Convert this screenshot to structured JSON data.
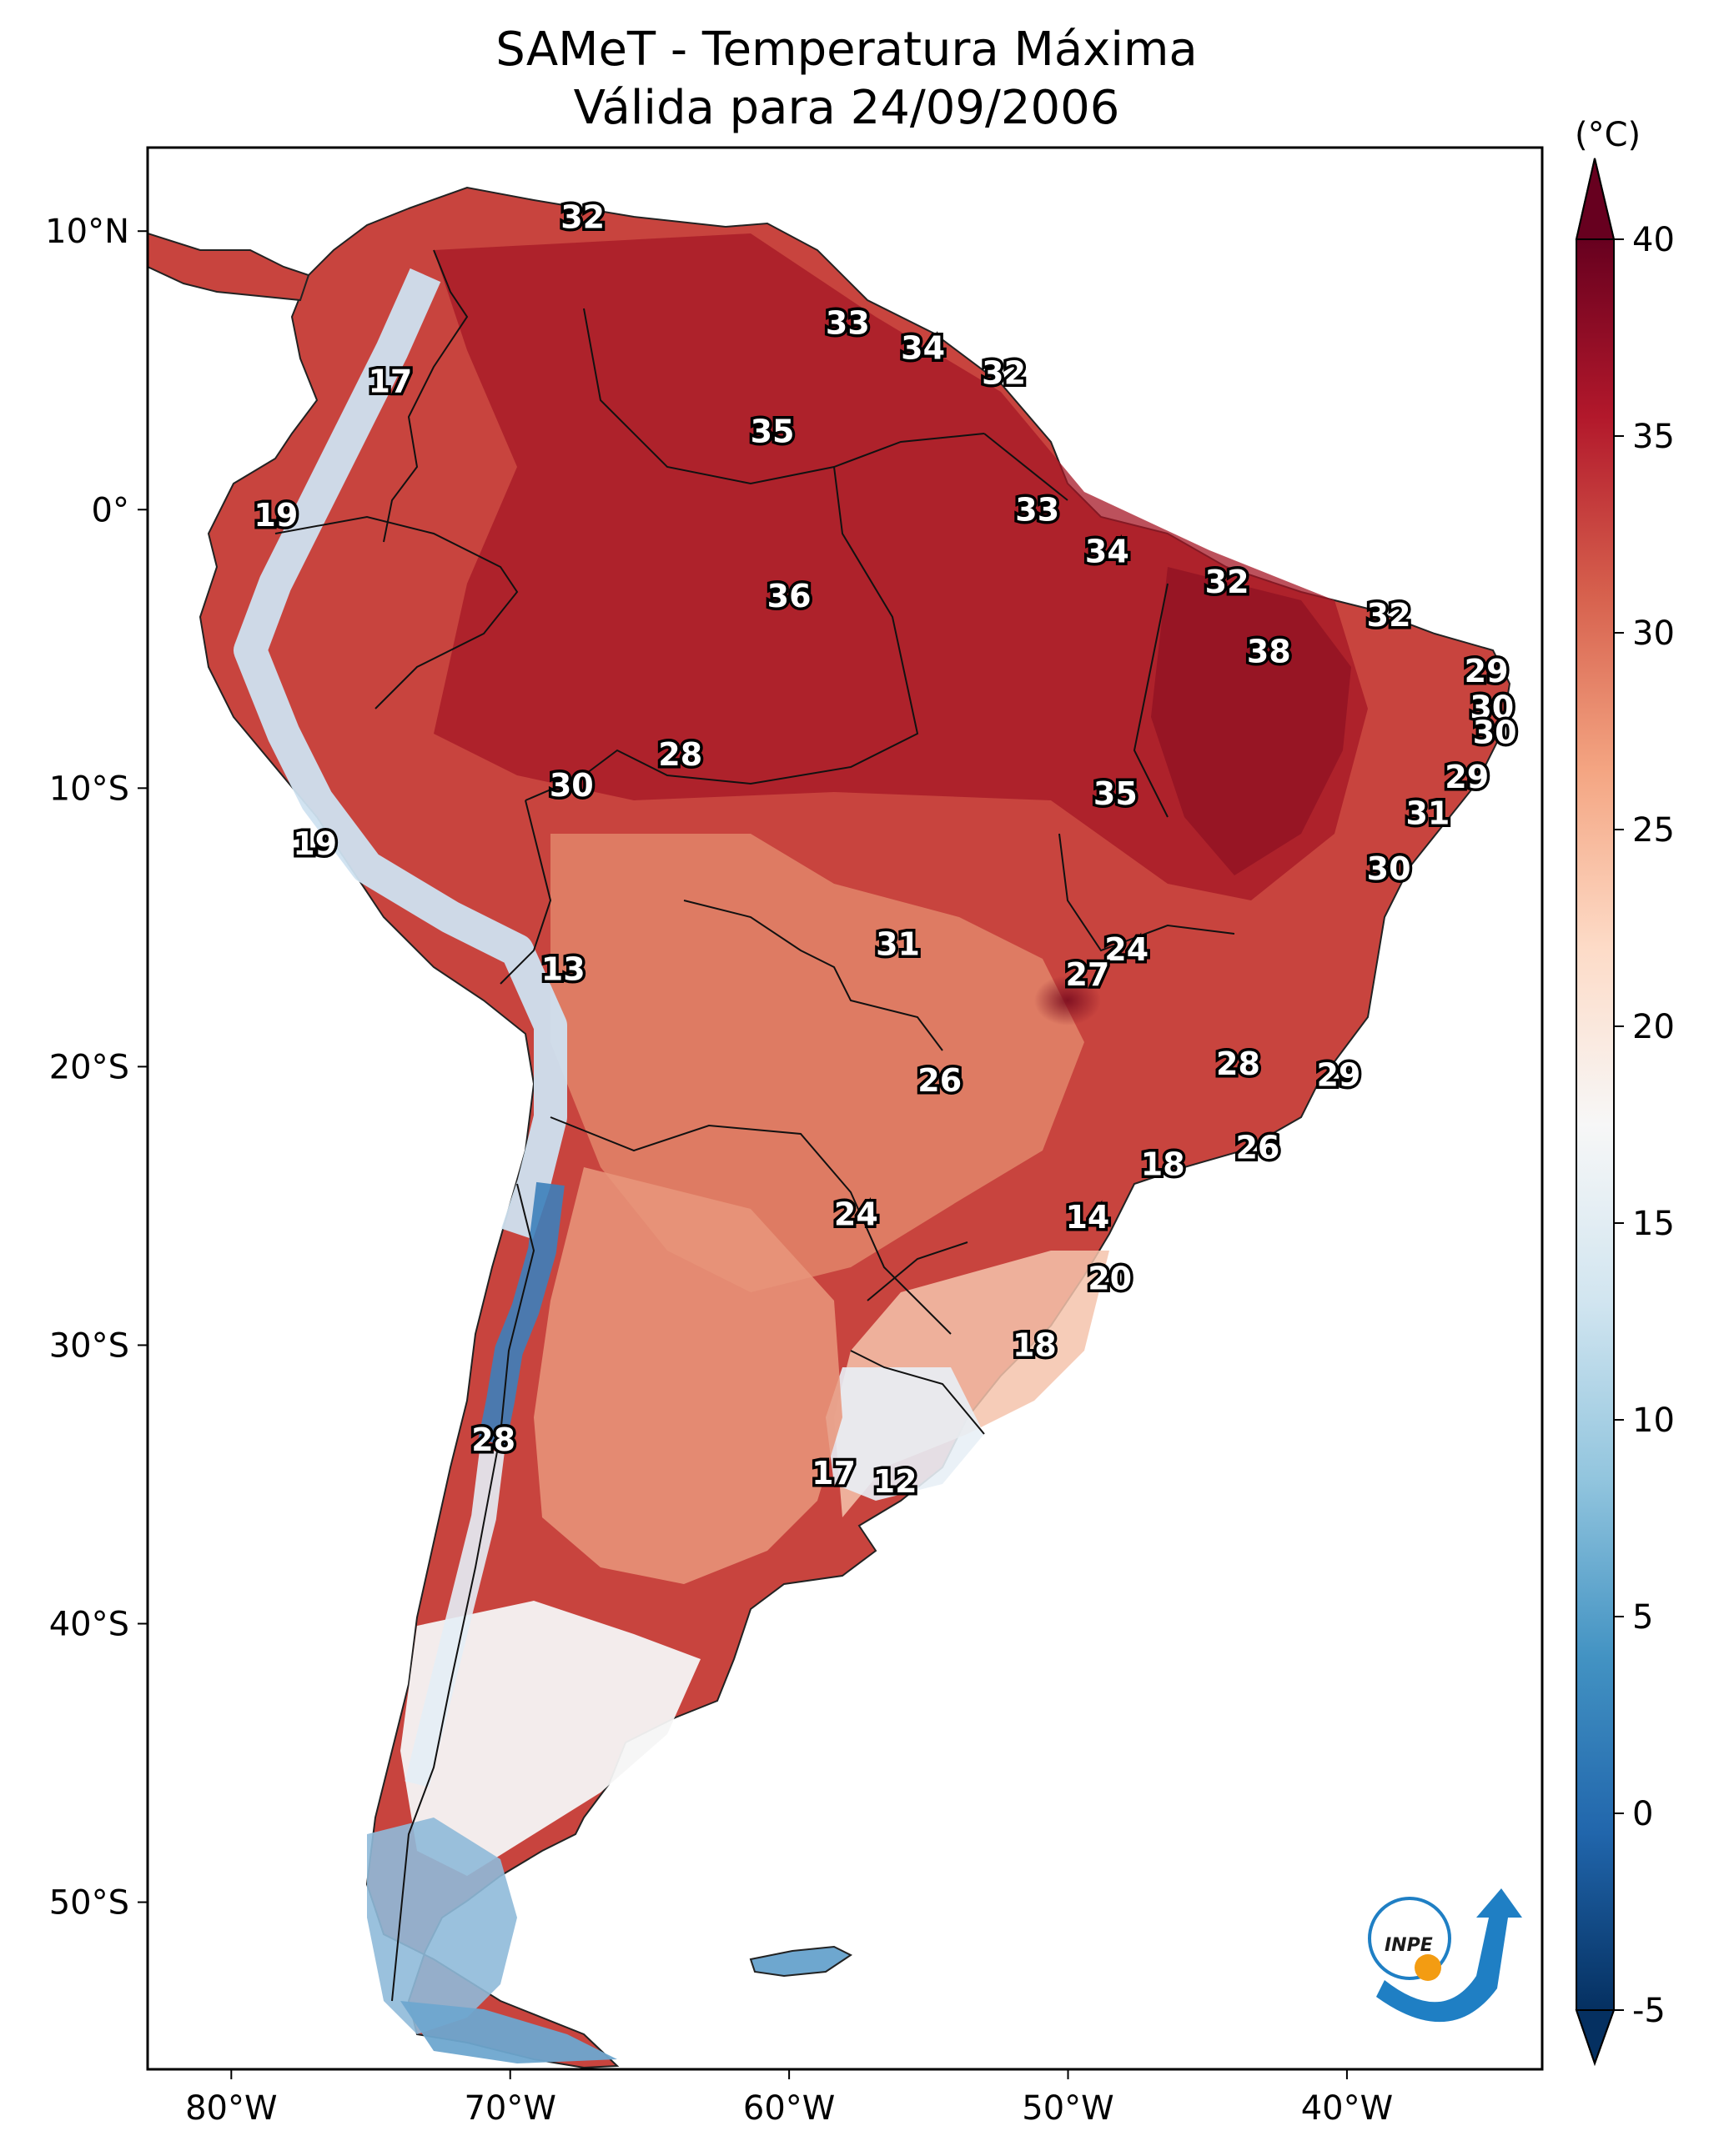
{
  "title": {
    "line1": "SAMeT - Temperatura Máxima",
    "line2": "Válida para 24/09/2006"
  },
  "map": {
    "lon_range": [
      -83,
      -33
    ],
    "lat_range": [
      -56,
      13
    ],
    "lon_ticks": [
      {
        "value": -80,
        "label": "80°W"
      },
      {
        "value": -70,
        "label": "70°W"
      },
      {
        "value": -60,
        "label": "60°W"
      },
      {
        "value": -50,
        "label": "50°W"
      },
      {
        "value": -40,
        "label": "40°W"
      }
    ],
    "lat_ticks": [
      {
        "value": 10,
        "label": "10°N"
      },
      {
        "value": 0,
        "label": "0°"
      },
      {
        "value": -10,
        "label": "10°S"
      },
      {
        "value": -20,
        "label": "20°S"
      },
      {
        "value": -30,
        "label": "30°S"
      },
      {
        "value": -40,
        "label": "40°S"
      },
      {
        "value": -50,
        "label": "50°S"
      }
    ],
    "city_values": [
      {
        "lon": -67.4,
        "lat": 10.5,
        "label": "32"
      },
      {
        "lon": -74.3,
        "lat": 4.6,
        "label": "17"
      },
      {
        "lon": -78.4,
        "lat": -0.2,
        "label": "19"
      },
      {
        "lon": -57.9,
        "lat": 6.7,
        "label": "33"
      },
      {
        "lon": -55.2,
        "lat": 5.8,
        "label": "34"
      },
      {
        "lon": -52.3,
        "lat": 4.9,
        "label": "32"
      },
      {
        "lon": -60.6,
        "lat": 2.8,
        "label": "35"
      },
      {
        "lon": -60.0,
        "lat": -3.1,
        "label": "36"
      },
      {
        "lon": -51.1,
        "lat": 0.0,
        "label": "33"
      },
      {
        "lon": -48.6,
        "lat": -1.5,
        "label": "34"
      },
      {
        "lon": -44.3,
        "lat": -2.6,
        "label": "32"
      },
      {
        "lon": -38.5,
        "lat": -3.8,
        "label": "32"
      },
      {
        "lon": -42.8,
        "lat": -5.1,
        "label": "38"
      },
      {
        "lon": -35.0,
        "lat": -5.8,
        "label": "29"
      },
      {
        "lon": -34.8,
        "lat": -7.1,
        "label": "30"
      },
      {
        "lon": -34.7,
        "lat": -8.0,
        "label": "30"
      },
      {
        "lon": -35.7,
        "lat": -9.6,
        "label": "29"
      },
      {
        "lon": -37.1,
        "lat": -10.9,
        "label": "31"
      },
      {
        "lon": -38.5,
        "lat": -12.9,
        "label": "30"
      },
      {
        "lon": -63.9,
        "lat": -8.8,
        "label": "28"
      },
      {
        "lon": -67.8,
        "lat": -9.9,
        "label": "30"
      },
      {
        "lon": -48.3,
        "lat": -10.2,
        "label": "35"
      },
      {
        "lon": -77.0,
        "lat": -12.0,
        "label": "19"
      },
      {
        "lon": -68.1,
        "lat": -16.5,
        "label": "13"
      },
      {
        "lon": -56.1,
        "lat": -15.6,
        "label": "31"
      },
      {
        "lon": -47.9,
        "lat": -15.8,
        "label": "24"
      },
      {
        "lon": -49.3,
        "lat": -16.7,
        "label": "27"
      },
      {
        "lon": -54.6,
        "lat": -20.5,
        "label": "26"
      },
      {
        "lon": -43.9,
        "lat": -19.9,
        "label": "28"
      },
      {
        "lon": -40.3,
        "lat": -20.3,
        "label": "29"
      },
      {
        "lon": -43.2,
        "lat": -22.9,
        "label": "26"
      },
      {
        "lon": -46.6,
        "lat": -23.5,
        "label": "18"
      },
      {
        "lon": -57.6,
        "lat": -25.3,
        "label": "24"
      },
      {
        "lon": -49.3,
        "lat": -25.4,
        "label": "14"
      },
      {
        "lon": -48.5,
        "lat": -27.6,
        "label": "20"
      },
      {
        "lon": -51.2,
        "lat": -30.0,
        "label": "18"
      },
      {
        "lon": -70.6,
        "lat": -33.4,
        "label": "28"
      },
      {
        "lon": -58.4,
        "lat": -34.6,
        "label": "17"
      },
      {
        "lon": -56.2,
        "lat": -34.9,
        "label": "12"
      }
    ]
  },
  "colorbar": {
    "unit": "(°C)",
    "min": -5,
    "max": 40,
    "ticks": [
      {
        "value": 40,
        "label": "40"
      },
      {
        "value": 35,
        "label": "35"
      },
      {
        "value": 30,
        "label": "30"
      },
      {
        "value": 25,
        "label": "25"
      },
      {
        "value": 20,
        "label": "20"
      },
      {
        "value": 15,
        "label": "15"
      },
      {
        "value": 10,
        "label": "10"
      },
      {
        "value": 5,
        "label": "5"
      },
      {
        "value": 0,
        "label": "0"
      },
      {
        "value": -5,
        "label": "-5"
      }
    ],
    "colors": [
      "#053061",
      "#2166ac",
      "#4393c3",
      "#92c5de",
      "#d1e5f0",
      "#f7f7f7",
      "#fddbc7",
      "#f4a582",
      "#d6604d",
      "#b2182b",
      "#67001f"
    ]
  },
  "logo": {
    "text": "INPE",
    "colors": {
      "blue": "#1f7fc4",
      "orange": "#f39c12"
    }
  }
}
